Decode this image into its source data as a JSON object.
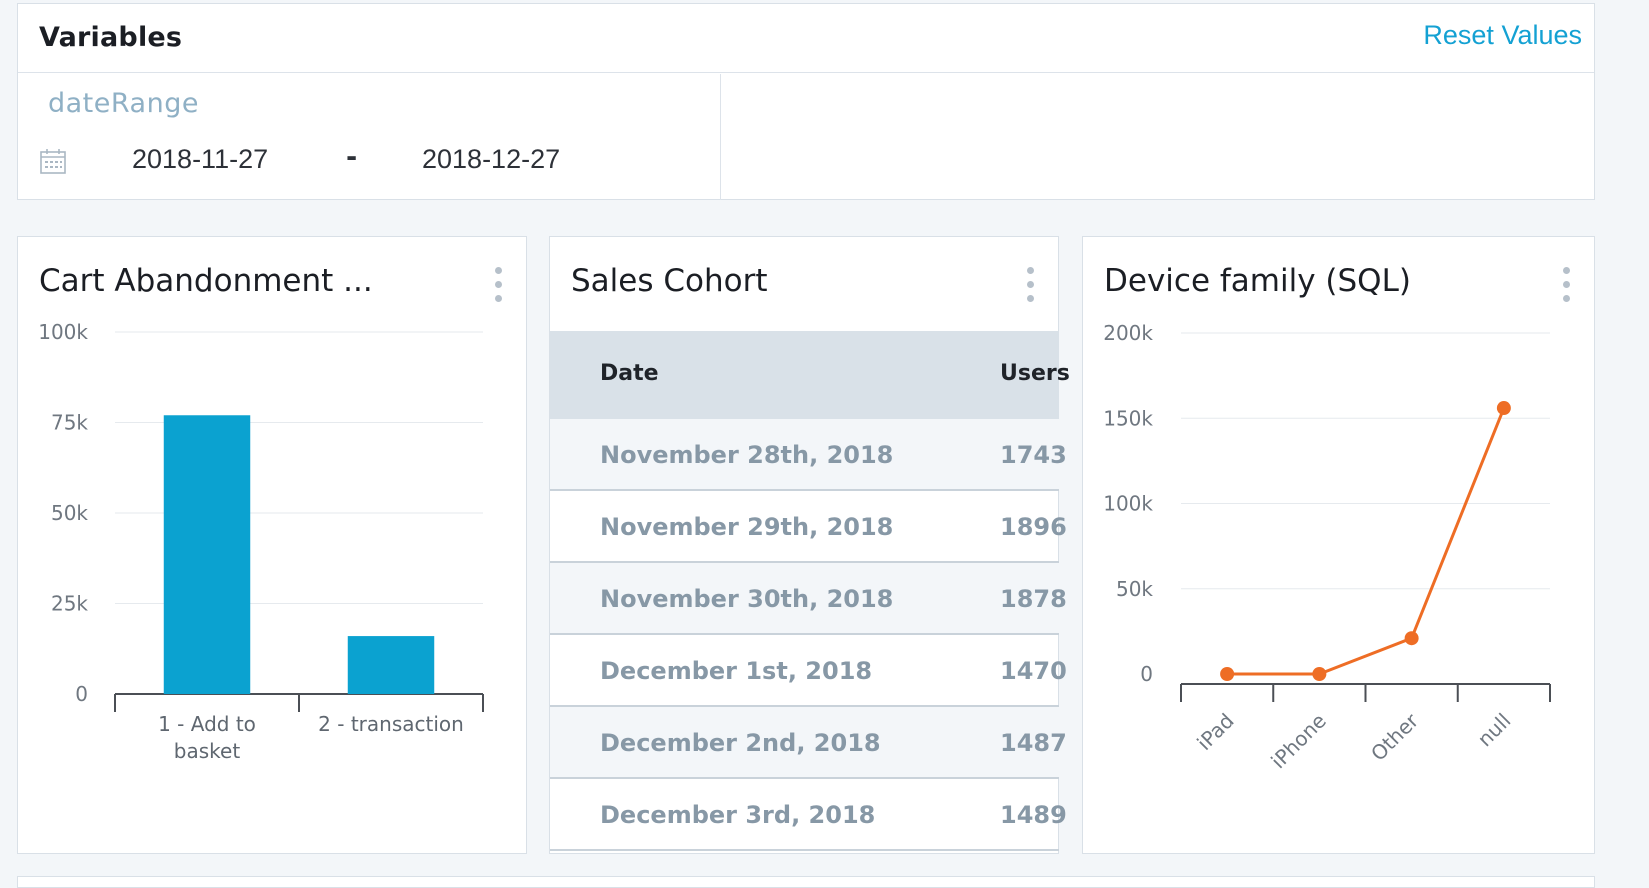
{
  "variables": {
    "title": "Variables",
    "reset_label": "Reset Values",
    "items": [
      {
        "name": "dateRange",
        "start": "2018-11-27",
        "separator": "-",
        "end": "2018-12-27"
      }
    ]
  },
  "widgets": {
    "cart": {
      "title": "Cart Abandonment ...",
      "chart_data": {
        "type": "bar",
        "categories": [
          "1 - Add to basket",
          "2 - transaction"
        ],
        "category_lines": [
          [
            "1 - Add to",
            "basket"
          ],
          [
            "2 - transaction"
          ]
        ],
        "values": [
          77000,
          16000
        ],
        "ylim": [
          0,
          100000
        ],
        "yticks": [
          "0",
          "25k",
          "50k",
          "75k",
          "100k"
        ],
        "title": "",
        "xlabel": "",
        "ylabel": "",
        "grid": true,
        "color": "#0ba2d0"
      }
    },
    "cohort": {
      "title": "Sales Cohort",
      "columns": [
        "Date",
        "Users"
      ],
      "rows": [
        [
          "November 28th, 2018",
          "1743"
        ],
        [
          "November 29th, 2018",
          "1896"
        ],
        [
          "November 30th, 2018",
          "1878"
        ],
        [
          "December 1st, 2018",
          "1470"
        ],
        [
          "December 2nd, 2018",
          "1487"
        ],
        [
          "December 3rd, 2018",
          "1489"
        ]
      ]
    },
    "device": {
      "title": "Device family (SQL)",
      "chart_data": {
        "type": "line",
        "categories": [
          "iPad",
          "iPhone",
          "Other",
          "null"
        ],
        "values": [
          0,
          0,
          21000,
          156000
        ],
        "ylim": [
          0,
          200000
        ],
        "yticks": [
          "0",
          "50k",
          "100k",
          "150k",
          "200k"
        ],
        "title": "",
        "xlabel": "",
        "ylabel": "",
        "grid": true,
        "color": "#ee6d25"
      }
    }
  }
}
